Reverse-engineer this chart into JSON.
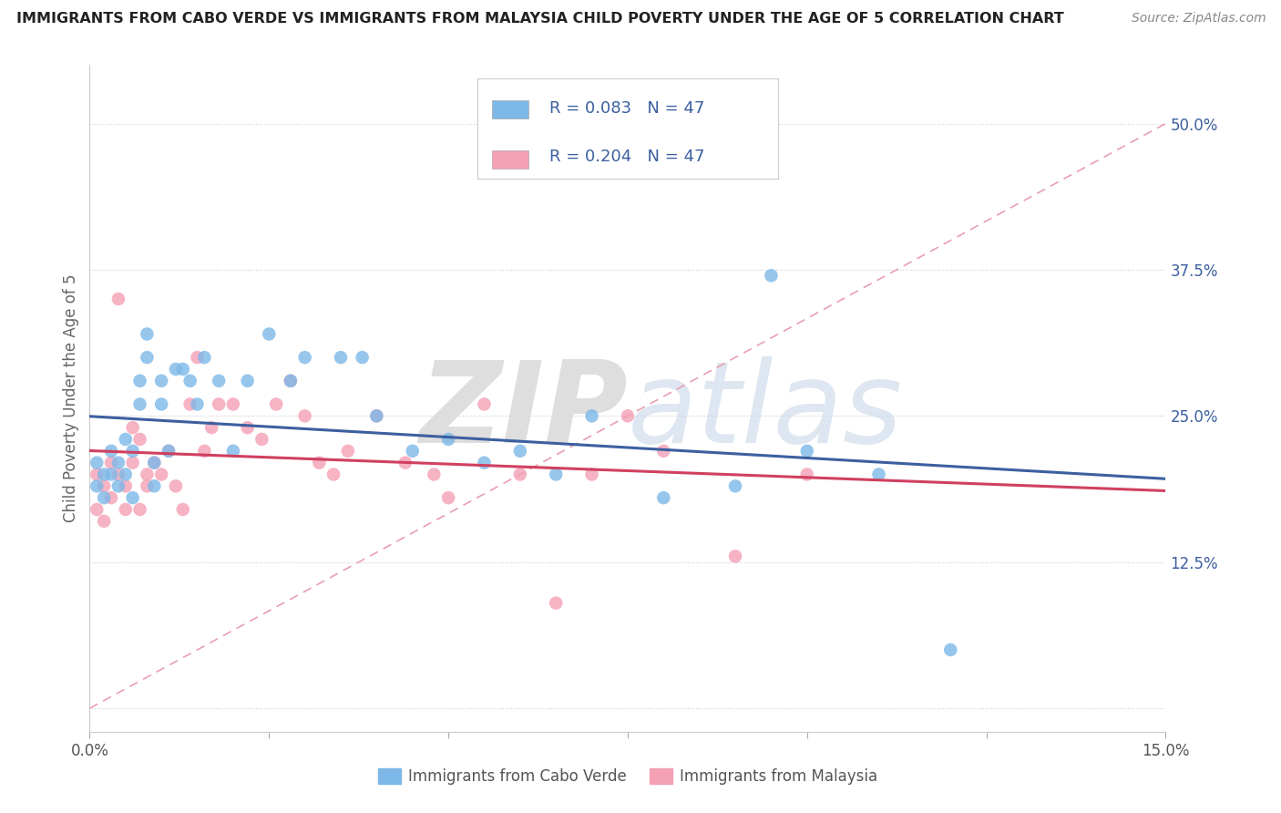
{
  "title": "IMMIGRANTS FROM CABO VERDE VS IMMIGRANTS FROM MALAYSIA CHILD POVERTY UNDER THE AGE OF 5 CORRELATION CHART",
  "source": "Source: ZipAtlas.com",
  "xlabel_cabo": "Immigrants from Cabo Verde",
  "xlabel_malaysia": "Immigrants from Malaysia",
  "ylabel": "Child Poverty Under the Age of 5",
  "xlim": [
    0.0,
    0.15
  ],
  "ylim": [
    -0.02,
    0.55
  ],
  "yticks": [
    0.0,
    0.125,
    0.25,
    0.375,
    0.5
  ],
  "ytick_labels": [
    "",
    "12.5%",
    "25.0%",
    "37.5%",
    "50.0%"
  ],
  "color_cabo": "#7db8e8",
  "color_malaysia": "#f4a0b5",
  "trend_cabo_color": "#3c5fa0",
  "trend_malaysia_color": "#d04060",
  "ref_line_color": "#e8a0b0",
  "watermark_zip": "ZIP",
  "watermark_atlas": "atlas",
  "watermark_color": "#d8d8d8",
  "cabo_x": [
    0.001,
    0.001,
    0.002,
    0.002,
    0.003,
    0.003,
    0.004,
    0.004,
    0.005,
    0.005,
    0.006,
    0.006,
    0.007,
    0.007,
    0.008,
    0.008,
    0.009,
    0.009,
    0.01,
    0.01,
    0.011,
    0.012,
    0.013,
    0.014,
    0.015,
    0.016,
    0.018,
    0.02,
    0.022,
    0.025,
    0.028,
    0.03,
    0.035,
    0.038,
    0.04,
    0.045,
    0.05,
    0.055,
    0.06,
    0.065,
    0.07,
    0.08,
    0.09,
    0.095,
    0.1,
    0.11,
    0.12
  ],
  "cabo_y": [
    0.21,
    0.19,
    0.2,
    0.18,
    0.22,
    0.2,
    0.19,
    0.21,
    0.23,
    0.2,
    0.22,
    0.18,
    0.28,
    0.26,
    0.32,
    0.3,
    0.19,
    0.21,
    0.28,
    0.26,
    0.22,
    0.29,
    0.29,
    0.28,
    0.26,
    0.3,
    0.28,
    0.22,
    0.28,
    0.32,
    0.28,
    0.3,
    0.3,
    0.3,
    0.25,
    0.22,
    0.23,
    0.21,
    0.22,
    0.2,
    0.25,
    0.18,
    0.19,
    0.37,
    0.22,
    0.2,
    0.05
  ],
  "malaysia_x": [
    0.001,
    0.001,
    0.002,
    0.002,
    0.003,
    0.003,
    0.004,
    0.004,
    0.005,
    0.005,
    0.006,
    0.006,
    0.007,
    0.007,
    0.008,
    0.008,
    0.009,
    0.01,
    0.011,
    0.012,
    0.013,
    0.014,
    0.015,
    0.016,
    0.017,
    0.018,
    0.02,
    0.022,
    0.024,
    0.026,
    0.028,
    0.03,
    0.032,
    0.034,
    0.036,
    0.04,
    0.044,
    0.048,
    0.05,
    0.055,
    0.06,
    0.065,
    0.07,
    0.075,
    0.08,
    0.09,
    0.1
  ],
  "malaysia_y": [
    0.2,
    0.17,
    0.19,
    0.16,
    0.21,
    0.18,
    0.35,
    0.2,
    0.19,
    0.17,
    0.24,
    0.21,
    0.17,
    0.23,
    0.2,
    0.19,
    0.21,
    0.2,
    0.22,
    0.19,
    0.17,
    0.26,
    0.3,
    0.22,
    0.24,
    0.26,
    0.26,
    0.24,
    0.23,
    0.26,
    0.28,
    0.25,
    0.21,
    0.2,
    0.22,
    0.25,
    0.21,
    0.2,
    0.18,
    0.26,
    0.2,
    0.09,
    0.2,
    0.25,
    0.22,
    0.13,
    0.2
  ]
}
